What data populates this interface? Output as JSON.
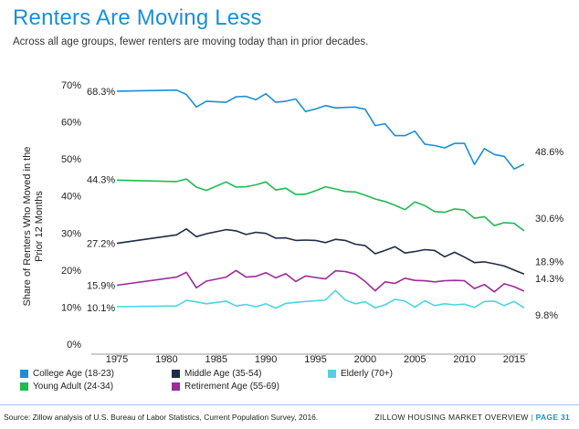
{
  "header": {
    "title": "Renters Are Moving Less",
    "subtitle": "Across all age groups, fewer renters are moving today than in prior decades."
  },
  "footer": {
    "source": "Source: Zillow analysis of U.S. Bureau of Labor Statistics, Current Population Survey, 2016.",
    "brand": "ZILLOW HOUSING MARKET OVERVIEW",
    "separator": "|",
    "page": "PAGE 31"
  },
  "chart_data": {
    "type": "line",
    "title": "Renters Are Moving Less",
    "ylabel": "Share of Renters Who Moved in the Prior 12 Months",
    "xlabel": "",
    "xlim": [
      1975,
      2017
    ],
    "ylim": [
      0,
      70
    ],
    "x_ticks": [
      "1975",
      "1980",
      "1985",
      "1990",
      "1995",
      "2000",
      "2005",
      "2010",
      "2015"
    ],
    "x_tick_values": [
      1975,
      1980,
      1985,
      1990,
      1995,
      2000,
      2005,
      2010,
      2015
    ],
    "y_ticks": [
      "0%",
      "10%",
      "20%",
      "30%",
      "40%",
      "50%",
      "60%",
      "70%"
    ],
    "y_tick_values": [
      0,
      10,
      20,
      30,
      40,
      50,
      60,
      70
    ],
    "grid": false,
    "legend_position": "bottom",
    "series": [
      {
        "name": "College Age (18-23)",
        "color": "#1a8fd6",
        "start_label": "68.3%",
        "end_label": "48.6%",
        "x": [
          1975,
          1981,
          1982,
          1983,
          1984,
          1986,
          1987,
          1988,
          1989,
          1990,
          1991,
          1992,
          1993,
          1994,
          1995,
          1996,
          1997,
          1998,
          1999,
          2000,
          2001,
          2002,
          2003,
          2004,
          2005,
          2006,
          2007,
          2008,
          2009,
          2010,
          2011,
          2012,
          2013,
          2014,
          2015,
          2016
        ],
        "y": [
          68.3,
          68.6,
          67.4,
          64.0,
          65.6,
          65.3,
          66.8,
          66.9,
          66.0,
          67.6,
          65.3,
          65.6,
          66.2,
          62.8,
          63.5,
          64.4,
          63.8,
          63.9,
          64.0,
          63.4,
          59.0,
          59.5,
          56.3,
          56.3,
          57.5,
          54.0,
          53.6,
          53.0,
          54.2,
          54.2,
          48.5,
          52.8,
          51.2,
          50.7,
          47.3,
          48.6
        ]
      },
      {
        "name": "Young Adult (24-34)",
        "color": "#1fba52",
        "start_label": "44.3%",
        "end_label": "30.6%",
        "x": [
          1975,
          1981,
          1982,
          1983,
          1984,
          1986,
          1987,
          1988,
          1989,
          1990,
          1991,
          1992,
          1993,
          1994,
          1995,
          1996,
          1997,
          1998,
          1999,
          2000,
          2001,
          2002,
          2003,
          2004,
          2005,
          2006,
          2007,
          2008,
          2009,
          2010,
          2011,
          2012,
          2013,
          2014,
          2015,
          2016
        ],
        "y": [
          44.3,
          43.9,
          44.6,
          42.4,
          41.5,
          43.8,
          42.4,
          42.5,
          43.0,
          43.8,
          41.6,
          42.1,
          40.4,
          40.5,
          41.4,
          42.5,
          41.9,
          41.2,
          41.1,
          40.2,
          39.2,
          38.5,
          37.5,
          36.3,
          38.4,
          37.4,
          35.8,
          35.6,
          36.5,
          36.2,
          34.0,
          34.4,
          32.0,
          32.8,
          32.6,
          30.6
        ]
      },
      {
        "name": "Middle Age (35-54)",
        "color": "#1f2c46",
        "start_label": "27.2%",
        "end_label": "18.9%",
        "x": [
          1975,
          1981,
          1982,
          1983,
          1984,
          1986,
          1987,
          1988,
          1989,
          1990,
          1991,
          1992,
          1993,
          1994,
          1995,
          1996,
          1997,
          1998,
          1999,
          2000,
          2001,
          2002,
          2003,
          2004,
          2005,
          2006,
          2007,
          2008,
          2009,
          2010,
          2011,
          2012,
          2013,
          2014,
          2015,
          2016
        ],
        "y": [
          27.2,
          29.5,
          31.1,
          29.0,
          29.8,
          30.9,
          30.6,
          29.6,
          30.2,
          29.9,
          28.6,
          28.7,
          28.0,
          28.1,
          28.0,
          27.4,
          28.3,
          28.0,
          27.0,
          26.6,
          24.4,
          25.3,
          26.3,
          24.6,
          25.0,
          25.5,
          25.3,
          23.6,
          24.8,
          23.5,
          22.0,
          22.2,
          21.7,
          21.1,
          20.0,
          18.9
        ]
      },
      {
        "name": "Retirement Age (55-69)",
        "color": "#9c2b9c",
        "start_label": "15.9%",
        "end_label": "14.3%",
        "x": [
          1975,
          1981,
          1982,
          1983,
          1984,
          1986,
          1987,
          1988,
          1989,
          1990,
          1991,
          1992,
          1993,
          1994,
          1995,
          1996,
          1997,
          1998,
          1999,
          2000,
          2001,
          2002,
          2003,
          2004,
          2005,
          2006,
          2007,
          2008,
          2009,
          2010,
          2011,
          2012,
          2013,
          2014,
          2015,
          2016
        ],
        "y": [
          15.9,
          18.1,
          19.4,
          15.2,
          17.0,
          18.1,
          19.9,
          18.1,
          18.3,
          19.3,
          17.9,
          19.0,
          16.9,
          18.4,
          18.0,
          17.6,
          19.8,
          19.6,
          18.9,
          16.9,
          14.4,
          16.8,
          16.4,
          17.8,
          17.2,
          17.1,
          16.8,
          17.1,
          17.2,
          17.1,
          15.0,
          16.1,
          14.1,
          16.3,
          15.5,
          14.3
        ]
      },
      {
        "name": "Elderly (70+)",
        "color": "#4dd4e0",
        "start_label": "10.1%",
        "end_label": "9.8%",
        "x": [
          1975,
          1981,
          1982,
          1983,
          1984,
          1986,
          1987,
          1988,
          1989,
          1990,
          1991,
          1992,
          1993,
          1994,
          1995,
          1996,
          1997,
          1998,
          1999,
          2000,
          2001,
          2002,
          2003,
          2004,
          2005,
          2006,
          2007,
          2008,
          2009,
          2010,
          2011,
          2012,
          2013,
          2014,
          2015,
          2016
        ],
        "y": [
          10.1,
          10.3,
          11.8,
          11.4,
          10.9,
          11.6,
          10.3,
          10.7,
          10.1,
          10.9,
          9.7,
          11.0,
          11.3,
          11.5,
          11.7,
          11.9,
          14.5,
          11.9,
          10.9,
          11.4,
          9.8,
          10.6,
          12.1,
          11.6,
          10.0,
          11.7,
          10.4,
          10.9,
          10.6,
          10.8,
          9.9,
          11.5,
          11.6,
          10.4,
          11.5,
          9.8
        ]
      }
    ],
    "legend": [
      {
        "label": "College Age (18-23)",
        "color": "#1a8fd6"
      },
      {
        "label": "Middle Age (35-54)",
        "color": "#1f2c46"
      },
      {
        "label": "Elderly (70+)",
        "color": "#4dd4e0"
      },
      {
        "label": "Young Adult (24-34)",
        "color": "#1fba52"
      },
      {
        "label": "Retirement Age (55-69)",
        "color": "#9c2b9c"
      }
    ]
  }
}
